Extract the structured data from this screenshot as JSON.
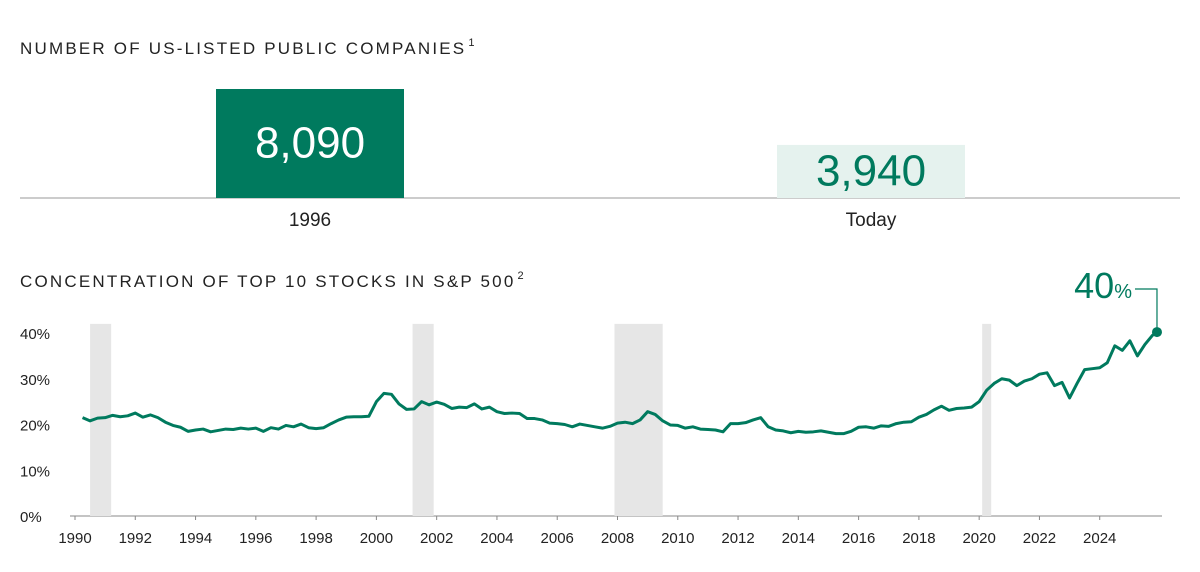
{
  "chart_data": [
    {
      "type": "bar",
      "title": "NUMBER OF US-LISTED PUBLIC COMPANIES",
      "footnote": "1",
      "categories": [
        "1996",
        "Today"
      ],
      "values": [
        8090,
        3940
      ],
      "value_labels": [
        "8,090",
        "3,940"
      ],
      "colors": [
        "#007a5e",
        "#e5f2ee"
      ],
      "label_colors": [
        "#ffffff",
        "#007a5e"
      ]
    },
    {
      "type": "line",
      "title": "CONCENTRATION OF TOP 10 STOCKS IN S&P 500",
      "footnote": "2",
      "color": "#007a5e",
      "grid": false,
      "annotation": {
        "number": "40",
        "unit": "%"
      },
      "shaded_regions": [
        [
          1990.5,
          1991.2
        ],
        [
          2001.2,
          2001.9
        ],
        [
          2007.9,
          2009.5
        ],
        [
          2020.1,
          2020.4
        ]
      ],
      "shade_color": "#e6e6e6",
      "xlim": [
        1990,
        2026
      ],
      "xticks": [
        1990,
        1992,
        1994,
        1996,
        1998,
        2000,
        2002,
        2004,
        2006,
        2008,
        2010,
        2012,
        2014,
        2016,
        2018,
        2020,
        2022,
        2024
      ],
      "ylim": [
        0,
        42
      ],
      "yticks": [
        {
          "value": 0,
          "label": "0%"
        },
        {
          "value": 10,
          "label": "10%"
        },
        {
          "value": 20,
          "label": "20%"
        },
        {
          "value": 30,
          "label": "30%"
        },
        {
          "value": 40,
          "label": "40%"
        }
      ],
      "x": [
        1990.25,
        1990.5,
        1990.75,
        1991,
        1991.25,
        1991.5,
        1991.75,
        1992,
        1992.25,
        1992.5,
        1992.75,
        1993,
        1993.25,
        1993.5,
        1993.75,
        1994,
        1994.25,
        1994.5,
        1994.75,
        1995,
        1995.25,
        1995.5,
        1995.75,
        1996,
        1996.25,
        1996.5,
        1996.75,
        1997,
        1997.25,
        1997.5,
        1997.75,
        1998,
        1998.25,
        1998.5,
        1998.75,
        1999,
        1999.25,
        1999.5,
        1999.75,
        2000,
        2000.25,
        2000.5,
        2000.75,
        2001,
        2001.25,
        2001.5,
        2001.75,
        2002,
        2002.25,
        2002.5,
        2002.75,
        2003,
        2003.25,
        2003.5,
        2003.75,
        2004,
        2004.25,
        2004.5,
        2004.75,
        2005,
        2005.25,
        2005.5,
        2005.75,
        2006,
        2006.25,
        2006.5,
        2006.75,
        2007,
        2007.25,
        2007.5,
        2007.75,
        2008,
        2008.25,
        2008.5,
        2008.75,
        2009,
        2009.25,
        2009.5,
        2009.75,
        2010,
        2010.25,
        2010.5,
        2010.75,
        2011,
        2011.25,
        2011.5,
        2011.75,
        2012,
        2012.25,
        2012.5,
        2012.75,
        2013,
        2013.25,
        2013.5,
        2013.75,
        2014,
        2014.25,
        2014.5,
        2014.75,
        2015,
        2015.25,
        2015.5,
        2015.75,
        2016,
        2016.25,
        2016.5,
        2016.75,
        2017,
        2017.25,
        2017.5,
        2017.75,
        2018,
        2018.25,
        2018.5,
        2018.75,
        2019,
        2019.25,
        2019.5,
        2019.75,
        2020,
        2020.25,
        2020.5,
        2020.75,
        2021,
        2021.25,
        2021.5,
        2021.75,
        2022,
        2022.25,
        2022.5,
        2022.75,
        2023,
        2023.25,
        2023.5,
        2023.75,
        2024,
        2024.25,
        2024.5,
        2024.75,
        2025,
        2025.25,
        2025.5,
        2025.75,
        2025.9
      ],
      "values": [
        21.5,
        20.8,
        21.4,
        21.5,
        22.0,
        21.7,
        21.9,
        22.5,
        21.6,
        22.1,
        21.5,
        20.5,
        19.8,
        19.4,
        18.5,
        18.8,
        19.0,
        18.4,
        18.7,
        19.0,
        18.9,
        19.2,
        19.0,
        19.2,
        18.5,
        19.3,
        19.0,
        19.8,
        19.5,
        20.1,
        19.3,
        19.1,
        19.3,
        20.2,
        21.0,
        21.6,
        21.7,
        21.7,
        21.8,
        25.0,
        26.8,
        26.6,
        24.5,
        23.3,
        23.4,
        25.0,
        24.3,
        24.9,
        24.4,
        23.5,
        23.8,
        23.7,
        24.5,
        23.4,
        23.8,
        22.8,
        22.4,
        22.5,
        22.4,
        21.3,
        21.3,
        21.0,
        20.3,
        20.2,
        20.0,
        19.5,
        20.1,
        19.8,
        19.5,
        19.2,
        19.6,
        20.3,
        20.5,
        20.2,
        21.0,
        22.8,
        22.2,
        20.8,
        19.9,
        19.8,
        19.2,
        19.5,
        19.0,
        18.9,
        18.8,
        18.4,
        20.2,
        20.2,
        20.4,
        21.0,
        21.5,
        19.5,
        18.8,
        18.6,
        18.2,
        18.5,
        18.3,
        18.4,
        18.6,
        18.3,
        18.0,
        18.0,
        18.5,
        19.4,
        19.5,
        19.2,
        19.7,
        19.6,
        20.2,
        20.5,
        20.6,
        21.6,
        22.2,
        23.2,
        24.0,
        23.1,
        23.5,
        23.6,
        23.8,
        25.0,
        27.5,
        29.0,
        30.0,
        29.7,
        28.5,
        29.5,
        30.0,
        31.0,
        31.3,
        28.5,
        29.2,
        25.8,
        29.0,
        32.0,
        32.2,
        32.4,
        33.5,
        37.2,
        36.2,
        38.3,
        35.0,
        37.5,
        39.5,
        40.2
      ]
    }
  ]
}
